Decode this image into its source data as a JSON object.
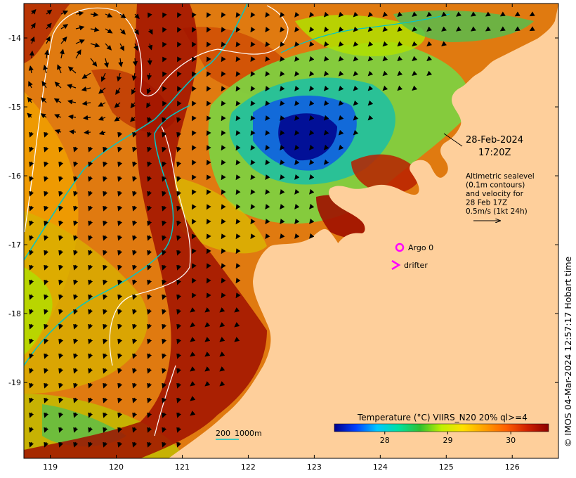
{
  "map": {
    "lon_ticks": [
      "119",
      "120",
      "121",
      "122",
      "123",
      "124",
      "125",
      "126"
    ],
    "lat_ticks": [
      "-14",
      "-15",
      "-16",
      "-17",
      "-18",
      "-19"
    ],
    "lon_range": [
      118.6,
      126.7
    ],
    "lat_range": [
      -13.5,
      -20.1
    ]
  },
  "annotation": {
    "date": "28-Feb-2024",
    "time": "17:20Z",
    "altimetry_lines": [
      "Altimetric sealevel",
      "(0.1m contours)",
      "and velocity for",
      "28 Feb 17Z",
      "0.5m/s (1kt 24h)"
    ]
  },
  "legend": {
    "argo_label": "Argo 0",
    "drifter_label": "drifter",
    "depth_contours": {
      "label_200": "200",
      "label_1000": "1000m"
    },
    "argo_color": "#ff00ff",
    "contour_200_color": "#00c8c8",
    "contour_1000_color": "#ffffff"
  },
  "colorbar": {
    "title": "Temperature (°C) VIIRS_N20 20% ql>=4",
    "ticks": [
      "28",
      "29",
      "30"
    ],
    "range": [
      27.2,
      30.6
    ],
    "colors": [
      "#00008b",
      "#0040ff",
      "#00c8ff",
      "#00e0a0",
      "#30c030",
      "#c0f000",
      "#ffe000",
      "#ffa000",
      "#ff6000",
      "#d02000",
      "#8b0000"
    ]
  },
  "credit": "© IMOS 04-Mar-2024 12:57:17 Hobart time",
  "colors": {
    "land": "#fecf9b",
    "warm_sea": "#e07a10",
    "hot_sea": "#a01000",
    "cool_sea": "#1040c0"
  }
}
